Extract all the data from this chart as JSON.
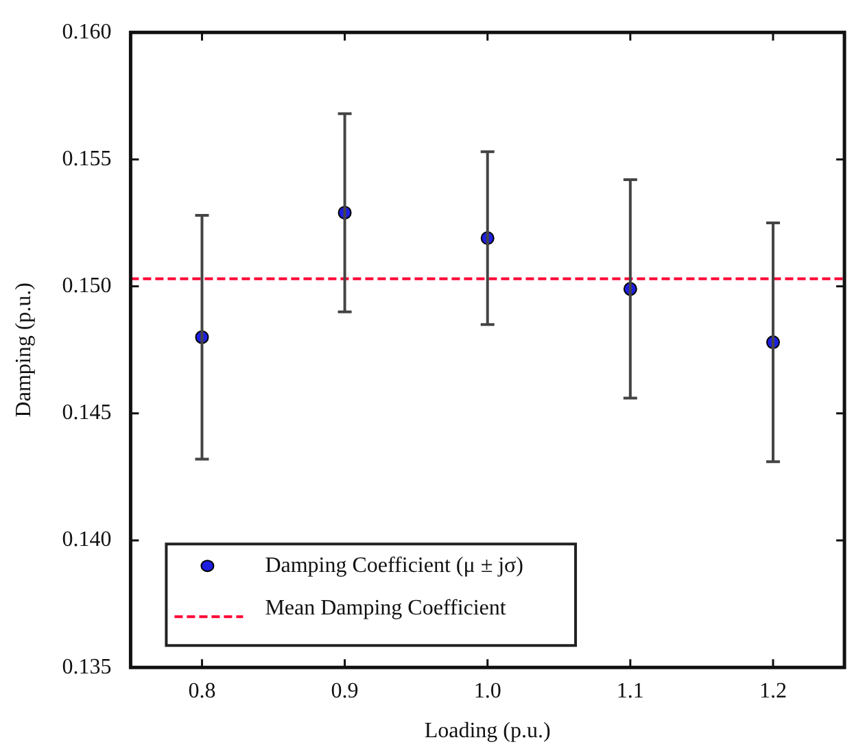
{
  "chart_data": {
    "type": "scatter",
    "xlabel": "Loading (p.u.)",
    "ylabel": "Damping (p.u.)",
    "x": [
      0.8,
      0.9,
      1.0,
      1.1,
      1.2
    ],
    "series": [
      {
        "name": "Damping Coefficient (μ ± jσ)",
        "color": "#1f1fe0",
        "values": [
          0.148,
          0.1529,
          0.1519,
          0.1499,
          0.1478
        ],
        "errors": [
          0.0048,
          0.0039,
          0.0034,
          0.0043,
          0.0047
        ]
      }
    ],
    "ref_lines": [
      {
        "axis": "y",
        "value": 0.1503,
        "label": "Mean Damping Coefficient",
        "color": "#ff0033",
        "line_style": "dashed"
      }
    ],
    "xlim": [
      0.75,
      1.25
    ],
    "xticks": [
      {
        "value": 0.8,
        "label": "0.8"
      },
      {
        "value": 0.9,
        "label": "0.9"
      },
      {
        "value": 1.0,
        "label": "1.0"
      },
      {
        "value": 1.1,
        "label": "1.1"
      },
      {
        "value": 1.2,
        "label": "1.2"
      }
    ],
    "ylim": [
      0.135,
      0.16
    ],
    "yticks": [
      {
        "value": 0.135,
        "label": "0.135"
      },
      {
        "value": 0.14,
        "label": "0.140"
      },
      {
        "value": 0.145,
        "label": "0.145"
      },
      {
        "value": 0.15,
        "label": "0.150"
      },
      {
        "value": 0.155,
        "label": "0.155"
      },
      {
        "value": 0.16,
        "label": "0.160"
      }
    ],
    "grid": false,
    "legend": "bottom left",
    "marker": "circle"
  }
}
